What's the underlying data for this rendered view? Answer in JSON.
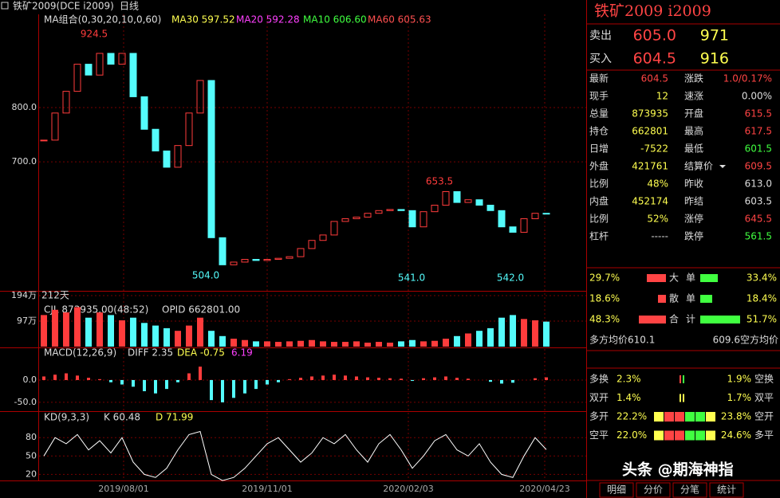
{
  "header": {
    "symbol": "铁矿2009(DCE i2009)",
    "period": "日线"
  },
  "price_chart": {
    "legend": [
      "MA组合(0,30,20,10,0,60)",
      "MA30 597.52",
      "MA20 592.28",
      "MA10 606.60",
      "MA60 605.63"
    ],
    "ylim": [
      462,
      972
    ],
    "yticks": [
      {
        "value": 800,
        "label": "800.0"
      },
      {
        "value": 700,
        "label": "700.0"
      }
    ],
    "closes": [
      740,
      790,
      830,
      880,
      860,
      900,
      880,
      900,
      820,
      760,
      720,
      690,
      730,
      790,
      850,
      560,
      510,
      515,
      520,
      518,
      520,
      522,
      525,
      540,
      555,
      565,
      590,
      595,
      598,
      605,
      610,
      612,
      610,
      580,
      608,
      620,
      645,
      625,
      630,
      620,
      610,
      580,
      570,
      595,
      605,
      604.5
    ],
    "annotations": [
      924.5,
      {
        "value": 504,
        "label": "504.0"
      },
      {
        "value": 541,
        "label": "541.0"
      },
      653.5,
      {
        "value": 542,
        "label": "542.0"
      }
    ],
    "days": "212天"
  },
  "volume_chart": {
    "legend": "CJL 873935.00(48:52)",
    "opid": "OPID 662801.00",
    "ylim": [
      0,
      206
    ],
    "yticks": [
      {
        "value": 194,
        "label": "194万"
      },
      {
        "value": 97,
        "label": "97万"
      }
    ],
    "values": [
      120,
      140,
      130,
      150,
      110,
      130,
      120,
      100,
      110,
      90,
      80,
      70,
      60,
      80,
      110,
      60,
      40,
      30,
      25,
      20,
      20,
      18,
      20,
      22,
      25,
      20,
      18,
      18,
      20,
      15,
      18,
      15,
      20,
      25,
      20,
      22,
      30,
      40,
      50,
      60,
      70,
      110,
      120,
      105,
      100,
      95
    ]
  },
  "macd_chart": {
    "legend": [
      "MACD(12,26,9)",
      "DIFF 2.35",
      "DEA -0.75",
      "6.19"
    ],
    "ylim": [
      -68,
      66
    ],
    "yticks": [
      {
        "value": 0,
        "label": "0.0"
      },
      {
        "value": -50,
        "label": "-50.0"
      }
    ],
    "values": [
      8,
      12,
      15,
      10,
      5,
      2,
      -5,
      -10,
      -15,
      -25,
      -30,
      -20,
      -5,
      15,
      30,
      -45,
      -50,
      -40,
      -30,
      -20,
      -10,
      -5,
      2,
      5,
      8,
      10,
      12,
      10,
      8,
      6,
      5,
      4,
      3,
      -2,
      4,
      6,
      8,
      5,
      3,
      0,
      -4,
      -8,
      -6,
      0,
      4,
      6
    ]
  },
  "kd_chart": {
    "legend": [
      "KD(9,3,3)",
      "K 60.48",
      "D 71.99"
    ],
    "ylim": [
      14,
      118
    ],
    "yticks": [
      80,
      50,
      20
    ],
    "k": [
      50,
      80,
      70,
      85,
      60,
      75,
      55,
      80,
      40,
      20,
      15,
      30,
      60,
      85,
      90,
      20,
      10,
      15,
      30,
      50,
      70,
      80,
      60,
      40,
      55,
      80,
      70,
      85,
      60,
      40,
      70,
      85,
      60,
      30,
      50,
      75,
      85,
      60,
      50,
      70,
      40,
      20,
      15,
      50,
      80,
      60.48
    ]
  },
  "x_labels": [
    "2019/08/01",
    "2019/11/01",
    "2020/02/03",
    "2020/04/23"
  ],
  "quote": {
    "title": "铁矿2009  i2009",
    "ask": [
      "卖出",
      "605.0",
      "971"
    ],
    "bid": [
      "买入",
      "604.5",
      "916"
    ],
    "rows": [
      [
        "最新",
        "604.5",
        "涨跌",
        "1.0/0.17%"
      ],
      [
        "现手",
        "12",
        "速涨",
        "0.00%"
      ],
      [
        "总量",
        "873935",
        "开盘",
        "615.5"
      ],
      [
        "持仓",
        "662801",
        "最高",
        "617.5"
      ],
      [
        "日增",
        "-7522",
        "最低",
        "601.5"
      ],
      [
        "外盘",
        "421761",
        "结算价",
        "609.5"
      ],
      [
        "比例",
        "48%",
        "昨收",
        "613.0"
      ],
      [
        "内盘",
        "452174",
        "昨结",
        "603.5"
      ],
      [
        "比例",
        "52%",
        "涨停",
        "645.5"
      ],
      [
        "杠杆",
        "-----",
        "跌停",
        "561.5"
      ]
    ],
    "orders": [
      [
        "29.7%",
        "大",
        "单",
        "33.4%"
      ],
      [
        "18.6%",
        "散",
        "单",
        "18.4%"
      ],
      [
        "48.3%",
        "合",
        "计",
        "51.7%"
      ]
    ],
    "avg": [
      "多方均价610.1",
      "609.6空方均价"
    ],
    "flows": [
      [
        "多换",
        "2.3%",
        "1.9%",
        "空换"
      ],
      [
        "双开",
        "1.4%",
        "1.7%",
        "双平"
      ],
      [
        "多开",
        "22.2%",
        "23.8%",
        "空开"
      ],
      [
        "空平",
        "22.0%",
        "24.6%",
        "多平"
      ]
    ],
    "tabs": [
      "明细",
      "分价",
      "分笔",
      "统计"
    ]
  },
  "watermark": "头条 @期海神指"
}
